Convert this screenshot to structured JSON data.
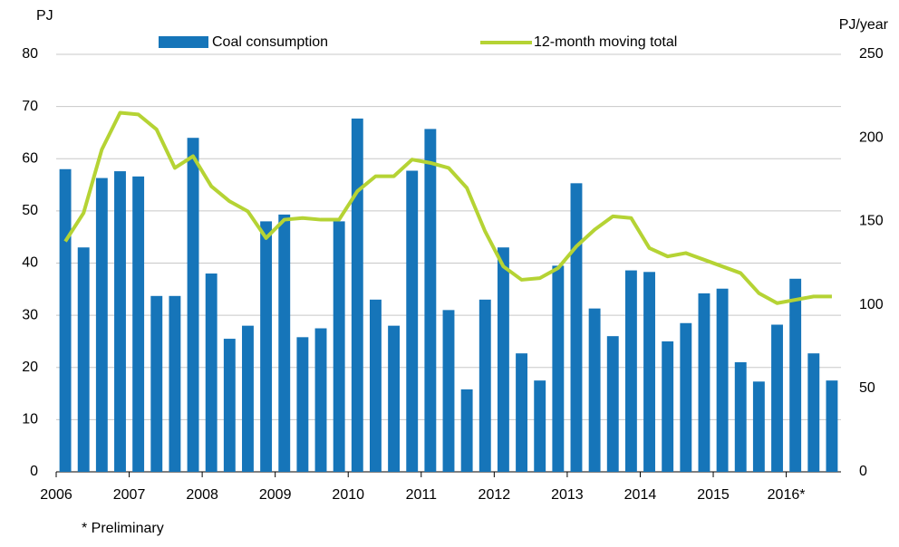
{
  "chart_data": {
    "type": "bar_line",
    "y_label": "PJ",
    "y2_label": "PJ/year",
    "footnote": "* Preliminary",
    "categories": [
      "2006",
      null,
      null,
      null,
      "2007",
      null,
      null,
      null,
      "2008",
      null,
      null,
      null,
      "2009",
      null,
      null,
      null,
      "2010",
      null,
      null,
      null,
      "2011",
      null,
      null,
      null,
      "2012",
      null,
      null,
      null,
      "2013",
      null,
      null,
      null,
      "2014",
      null,
      null,
      null,
      "2015",
      null,
      null,
      null,
      "2016*",
      null,
      null
    ],
    "series": [
      {
        "name": "Coal consumption",
        "color": "#1675b9",
        "kind": "bar",
        "values": [
          58,
          43,
          56.3,
          57.6,
          56.6,
          33.7,
          33.7,
          64,
          38,
          25.5,
          28,
          48,
          49.3,
          25.8,
          27.5,
          48,
          67.7,
          33,
          28,
          57.7,
          65.7,
          31,
          15.8,
          33,
          43,
          22.7,
          17.5,
          39.5,
          55.3,
          31.3,
          26,
          38.6,
          38.3,
          25,
          28.5,
          34.2,
          35.1,
          21,
          17.3,
          28.2,
          37,
          22.7,
          17.5
        ]
      },
      {
        "name": "12-month moving total",
        "color": "#b5d334",
        "kind": "line",
        "axis": "y2",
        "values": [
          138,
          155,
          193,
          215,
          214,
          205,
          182,
          189,
          171,
          162,
          156,
          140,
          151,
          152,
          151,
          151,
          168,
          177,
          177,
          187,
          185,
          182,
          170,
          144,
          123,
          115,
          116,
          122,
          135,
          145,
          153,
          152,
          134,
          129,
          131,
          127,
          123,
          119,
          107,
          101,
          103,
          105,
          105
        ]
      }
    ],
    "ylim": [
      0,
      80
    ],
    "yticks": [
      0,
      10,
      20,
      30,
      40,
      50,
      60,
      70,
      80
    ],
    "y2lim": [
      0,
      250
    ],
    "y2ticks": [
      0,
      50,
      100,
      150,
      200,
      250
    ],
    "grid": true
  }
}
